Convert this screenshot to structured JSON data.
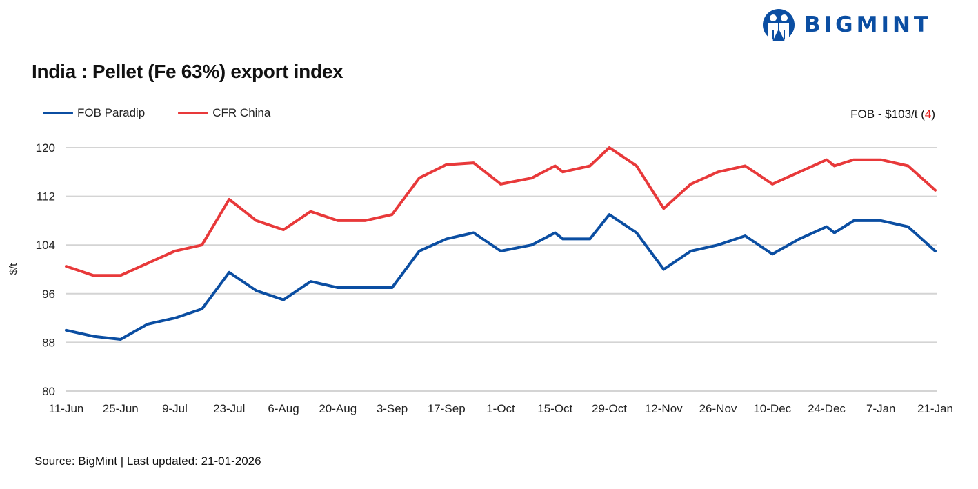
{
  "title": "India : Pellet (Fe 63%) export index",
  "logo": {
    "text": "BIGMINT",
    "color": "#0b4ea2"
  },
  "note": {
    "prefix": "FOB - $103/t (",
    "change": "4",
    "suffix": ")",
    "change_color": "#e8231f"
  },
  "source": "Source: BigMint | Last updated: 21-01-2026",
  "chart_data": {
    "type": "line",
    "title": "India : Pellet (Fe 63%) export index",
    "xlabel": "",
    "ylabel": "$/t",
    "ylim": [
      80,
      120
    ],
    "yticks": [
      80,
      88,
      96,
      104,
      112,
      120
    ],
    "grid": true,
    "legend": "top-left",
    "xticks": [
      "11-Jun",
      "25-Jun",
      "9-Jul",
      "23-Jul",
      "6-Aug",
      "20-Aug",
      "3-Sep",
      "17-Sep",
      "1-Oct",
      "15-Oct",
      "29-Oct",
      "12-Nov",
      "26-Nov",
      "10-Dec",
      "24-Dec",
      "7-Jan",
      "21-Jan"
    ],
    "x": [
      "2025-06-11",
      "2025-06-18",
      "2025-06-25",
      "2025-07-02",
      "2025-07-09",
      "2025-07-16",
      "2025-07-23",
      "2025-07-30",
      "2025-08-06",
      "2025-08-13",
      "2025-08-20",
      "2025-08-27",
      "2025-09-03",
      "2025-09-10",
      "2025-09-17",
      "2025-09-24",
      "2025-10-01",
      "2025-10-09",
      "2025-10-15",
      "2025-10-17",
      "2025-10-24",
      "2025-10-29",
      "2025-11-05",
      "2025-11-12",
      "2025-11-19",
      "2025-11-26",
      "2025-12-03",
      "2025-12-10",
      "2025-12-17",
      "2025-12-24",
      "2025-12-26",
      "2025-12-31",
      "2026-01-07",
      "2026-01-14",
      "2026-01-21"
    ],
    "series": [
      {
        "name": "FOB Paradip",
        "color": "#0b4ea2",
        "values": [
          90,
          89,
          88.5,
          91,
          92,
          93.5,
          99.5,
          96.5,
          95,
          98,
          97,
          97,
          97,
          103,
          105,
          106,
          103,
          104,
          106,
          105,
          105,
          109,
          106,
          100,
          103,
          104,
          105.5,
          102.5,
          105,
          107,
          106,
          108,
          108,
          107,
          103
        ]
      },
      {
        "name": "CFR China",
        "color": "#e8393a",
        "values": [
          100.5,
          99,
          99,
          101,
          103,
          104,
          111.5,
          108,
          106.5,
          109.5,
          108,
          108,
          109,
          115,
          117.2,
          117.5,
          114,
          115,
          117,
          116,
          117,
          120,
          117,
          110,
          114,
          116,
          117,
          114,
          116,
          118,
          117,
          118,
          118,
          117,
          113
        ]
      }
    ]
  }
}
